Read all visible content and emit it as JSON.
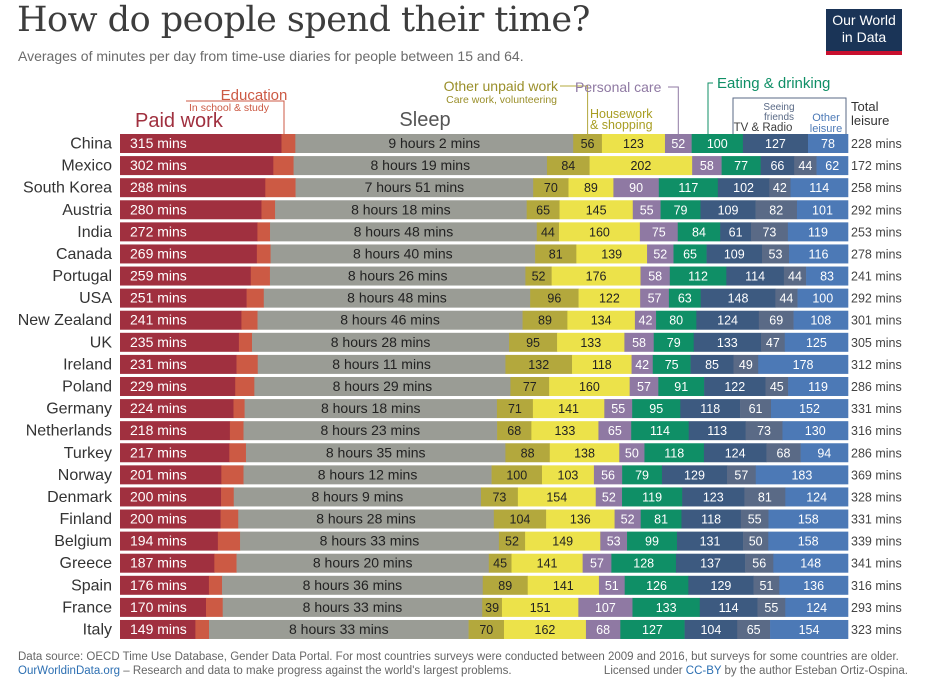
{
  "header": {
    "title": "How do people spend their time?",
    "subtitle": "Averages of minutes per day from time-use diaries for people between 15 and 64.",
    "logo_line1": "Our World",
    "logo_line2": "in Data"
  },
  "footer": {
    "source": "Data source: OECD Time Use Database, Gender Data Portal. For most countries surveys were conducted between 2009 and 2016, but surveys for some countries are older.",
    "site": "OurWorldinData.org",
    "tagline": " – Research and data to make progress against the world's largest problems.",
    "license_pre": "Licensed under ",
    "license_link": "CC-BY",
    "license_post": " by the author Esteban Ortiz-Ospina."
  },
  "colors": {
    "paid_work": "#a0303f",
    "education": "#cc5a44",
    "sleep": "#9a9c95",
    "other_unpaid": "#b3a83d",
    "housework": "#ece24a",
    "personal_care": "#8f79a3",
    "eating": "#0f8f66",
    "tv_radio": "#3d5a80",
    "seeing_friends": "#5a6a86",
    "other_leisure": "#4c79b6"
  },
  "chart_data": {
    "type": "bar",
    "stacked": true,
    "orientation": "horizontal",
    "headers": {
      "paid_work": "Paid work",
      "education": "Education",
      "education_sub": "In school & study",
      "sleep": "Sleep",
      "other_unpaid": "Other unpaid work",
      "other_unpaid_sub": "Care work, volunteering",
      "personal_care": "Personal care",
      "housework": "Housework",
      "housework_line2": "& shopping",
      "eating": "Eating & drinking",
      "seeing_friends": "Seeing",
      "seeing_friends_line2": "friends",
      "tv_radio": "TV & Radio",
      "other_leisure": "Other",
      "other_leisure_line2": "leisure",
      "total_leisure": "Total",
      "total_leisure_line2": "leisure"
    },
    "categories": [
      "China",
      "Mexico",
      "South Korea",
      "Austria",
      "India",
      "Canada",
      "Portugal",
      "USA",
      "New Zealand",
      "UK",
      "Ireland",
      "Poland",
      "Germany",
      "Netherlands",
      "Turkey",
      "Norway",
      "Denmark",
      "Finland",
      "Belgium",
      "Greece",
      "Spain",
      "France",
      "Italy"
    ],
    "series": [
      {
        "key": "paid_work",
        "values": [
          315,
          302,
          288,
          280,
          272,
          269,
          259,
          251,
          241,
          235,
          231,
          229,
          224,
          218,
          217,
          201,
          200,
          200,
          194,
          187,
          176,
          170,
          149
        ]
      },
      {
        "key": "education",
        "values": [
          27,
          40,
          60,
          27,
          25,
          27,
          38,
          34,
          32,
          26,
          42,
          38,
          22,
          27,
          33,
          44,
          25,
          35,
          44,
          44,
          26,
          33,
          27
        ]
      },
      {
        "key": "sleep",
        "values": [
          542,
          499,
          471,
          498,
          528,
          520,
          506,
          528,
          526,
          508,
          491,
          509,
          498,
          503,
          515,
          492,
          489,
          508,
          513,
          500,
          516,
          513,
          513
        ]
      },
      {
        "key": "other_unpaid",
        "values": [
          56,
          84,
          70,
          65,
          44,
          81,
          52,
          96,
          89,
          95,
          132,
          77,
          71,
          68,
          88,
          100,
          73,
          104,
          52,
          45,
          89,
          39,
          70
        ]
      },
      {
        "key": "housework",
        "values": [
          123,
          202,
          89,
          145,
          160,
          139,
          176,
          122,
          134,
          133,
          118,
          160,
          141,
          133,
          138,
          103,
          154,
          136,
          149,
          141,
          141,
          151,
          162
        ]
      },
      {
        "key": "personal_care",
        "values": [
          52,
          58,
          90,
          55,
          75,
          52,
          58,
          57,
          42,
          58,
          42,
          57,
          55,
          65,
          50,
          56,
          52,
          52,
          53,
          57,
          51,
          107,
          68
        ]
      },
      {
        "key": "eating",
        "values": [
          100,
          77,
          117,
          79,
          84,
          65,
          112,
          63,
          80,
          79,
          75,
          91,
          95,
          114,
          118,
          79,
          119,
          81,
          99,
          128,
          126,
          133,
          127
        ]
      },
      {
        "key": "tv_radio",
        "values": [
          127,
          66,
          102,
          109,
          61,
          109,
          114,
          148,
          124,
          133,
          85,
          122,
          118,
          113,
          124,
          129,
          123,
          118,
          131,
          137,
          129,
          114,
          104
        ]
      },
      {
        "key": "seeing_friends",
        "values": [
          null,
          44,
          42,
          82,
          73,
          53,
          44,
          44,
          69,
          47,
          49,
          45,
          61,
          73,
          68,
          57,
          81,
          55,
          50,
          56,
          51,
          55,
          65
        ]
      },
      {
        "key": "other_leisure",
        "values": [
          78,
          62,
          114,
          101,
          119,
          116,
          83,
          100,
          108,
          125,
          178,
          119,
          152,
          130,
          94,
          183,
          124,
          158,
          158,
          148,
          136,
          124,
          154
        ]
      }
    ],
    "sleep_labels": [
      "9 hours 2 mins",
      "8 hours 19 mins",
      "7 hours 51 mins",
      "8 hours 18 mins",
      "8 hours 48 mins",
      "8 hours 40 mins",
      "8 hours 26 mins",
      "8 hours 48 mins",
      "8 hours 46 mins",
      "8 hours 28 mins",
      "8 hours 11 mins",
      "8 hours 29 mins",
      "8 hours 18 mins",
      "8 hours 23 mins",
      "8 hours 35 mins",
      "8 hours 12 mins",
      "8 hours 9 mins",
      "8 hours 28 mins",
      "8 hours 33 mins",
      "8 hours 20 mins",
      "8 hours 36 mins",
      "8 hours 33 mins",
      "8 hours 33 mins"
    ],
    "paid_work_unit": "mins",
    "total_leisure": [
      228,
      172,
      258,
      292,
      253,
      278,
      241,
      292,
      301,
      305,
      312,
      286,
      331,
      316,
      286,
      369,
      328,
      331,
      339,
      341,
      316,
      293,
      323
    ],
    "total_unit": "mins"
  }
}
